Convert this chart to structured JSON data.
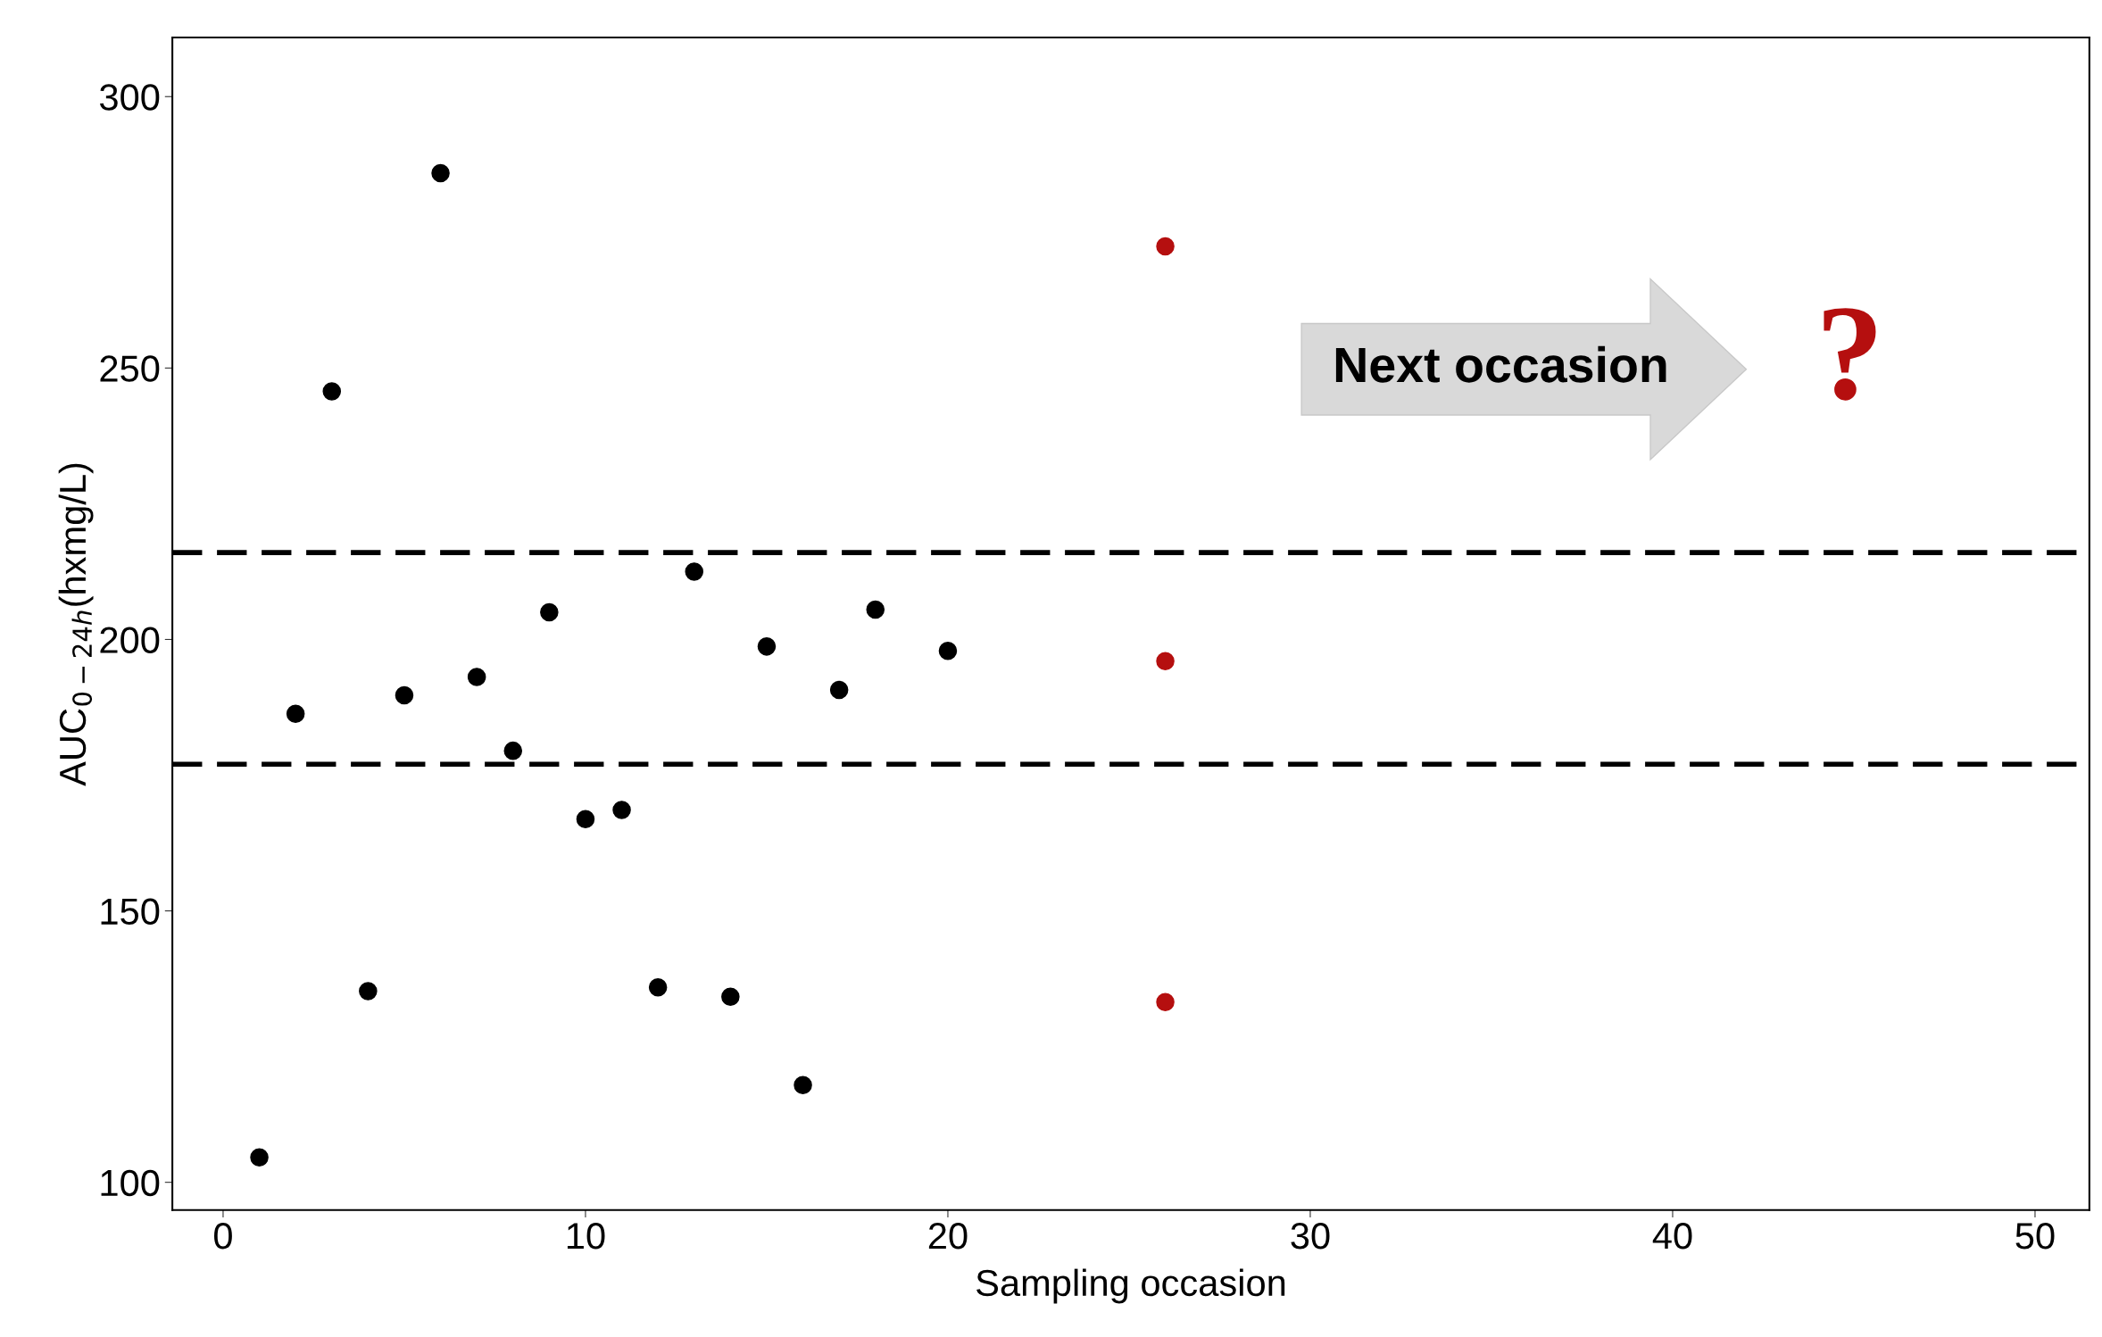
{
  "chart_data": {
    "type": "scatter",
    "xlabel": "Sampling occasion",
    "ylabel": "AUC$_{0−24h}$(hxmg/L)",
    "xlim": [
      -1.4,
      51.5
    ],
    "ylim": [
      94.9,
      310.9
    ],
    "xticks": [
      0,
      10,
      20,
      30,
      40,
      50
    ],
    "yticks": [
      100,
      150,
      200,
      250,
      300
    ],
    "grid": false,
    "marker": "circle",
    "series": [
      {
        "color": "#000000",
        "x": [
          1,
          2,
          3,
          4,
          5,
          6,
          7,
          8,
          9,
          10,
          11,
          12,
          13,
          14,
          15,
          16,
          17,
          18,
          20
        ],
        "values": [
          104.6,
          186.3,
          245.7,
          135.2,
          189.7,
          285.9,
          193.1,
          179.5,
          205,
          166.9,
          168.6,
          135.9,
          212.5,
          134.2,
          198.7,
          117.9,
          190.7,
          205.5,
          197.9
        ]
      },
      {
        "color": "#b50f0f",
        "x": [
          26,
          26,
          26
        ],
        "values": [
          272.4,
          196,
          133.2
        ]
      }
    ],
    "ref_lines": [
      {
        "axis": "y",
        "value": 216,
        "color": "#000000",
        "line_style": "dashed"
      },
      {
        "axis": "y",
        "value": 177,
        "color": "#000000",
        "line_style": "dashed"
      }
    ],
    "annotations": [
      "Next occasion",
      "?"
    ]
  }
}
